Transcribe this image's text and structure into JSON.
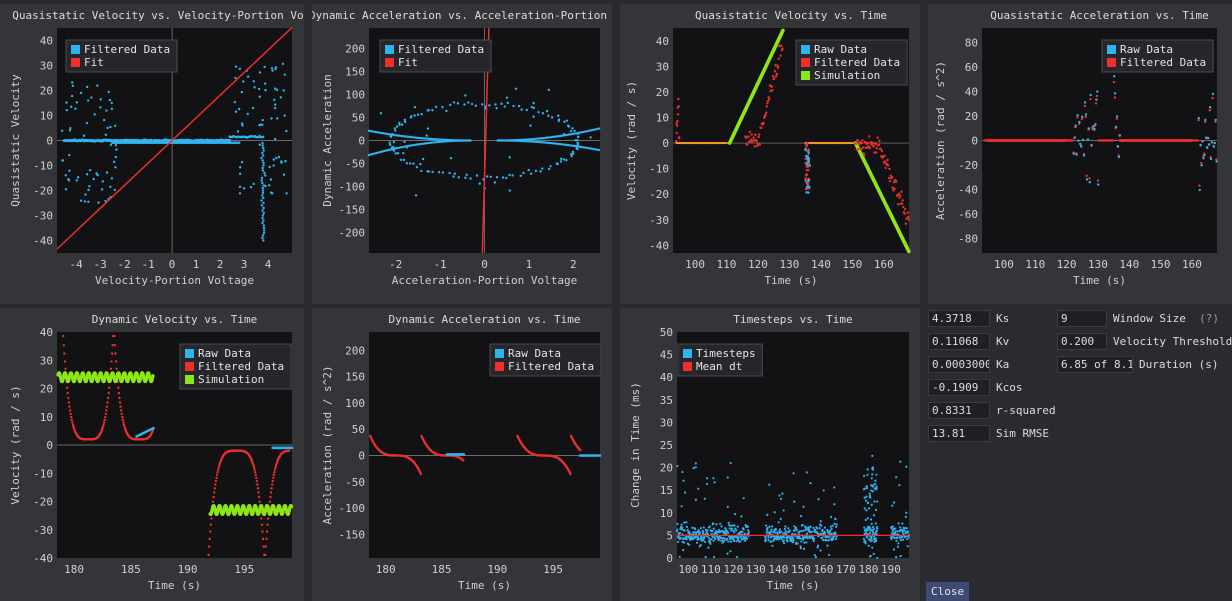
{
  "colors": {
    "blue": "#2fb4f0",
    "red": "#ee2f2f",
    "green": "#8ee61a",
    "yellow": "#e8c81c"
  },
  "charts": [
    {
      "id": "p1",
      "title": "Quasistatic Velocity vs. Velocity-Portion Voltage",
      "xlabel": "Velocity-Portion Voltage",
      "ylabel": "Quasistatic Velocity",
      "xlim": [
        -4.8,
        5.0
      ],
      "ylim": [
        -45,
        45
      ],
      "xticks": [
        -4,
        -3,
        -2,
        -1,
        0,
        1,
        2,
        3,
        4
      ],
      "yticks": [
        -40,
        -30,
        -20,
        -10,
        0,
        10,
        20,
        30,
        40
      ],
      "legend": [
        {
          "name": "Filtered Data",
          "color": "blue"
        },
        {
          "name": "Fit",
          "color": "red"
        }
      ],
      "chart_data": {
        "type": "scatter",
        "fit_slope": 9.04,
        "series": [
          "Filtered Data",
          "Fit"
        ]
      }
    },
    {
      "id": "p2",
      "title": "Dynamic Acceleration vs. Acceleration-Portion Voltage",
      "xlabel": "Acceleration-Portion Voltage",
      "ylabel": "Dynamic Acceleration",
      "xlim": [
        -2.6,
        2.6
      ],
      "ylim": [
        -245,
        245
      ],
      "xticks": [
        -2,
        -1,
        0,
        1,
        2
      ],
      "yticks": [
        -200,
        -150,
        -100,
        -50,
        0,
        50,
        100,
        150,
        200
      ],
      "legend": [
        {
          "name": "Filtered Data",
          "color": "blue"
        },
        {
          "name": "Fit",
          "color": "red"
        }
      ],
      "chart_data": {
        "type": "scatter",
        "series": [
          "Filtered Data",
          "Fit"
        ]
      }
    },
    {
      "id": "p3",
      "title": "Quasistatic Velocity vs. Time",
      "xlabel": "Time (s)",
      "ylabel": "Velocity (rad / s)",
      "xlim": [
        93,
        168
      ],
      "ylim": [
        -43,
        45
      ],
      "xticks": [
        100,
        110,
        120,
        130,
        140,
        150,
        160
      ],
      "yticks": [
        -40,
        -30,
        -20,
        -10,
        0,
        10,
        20,
        30,
        40
      ],
      "legend": [
        {
          "name": "Raw Data",
          "color": "blue"
        },
        {
          "name": "Filtered Data",
          "color": "red"
        },
        {
          "name": "Simulation",
          "color": "green"
        }
      ],
      "chart_data": {
        "type": "scatter",
        "series": [
          "Raw Data",
          "Filtered Data",
          "Simulation"
        ]
      }
    },
    {
      "id": "p4",
      "title": "Quasistatic Acceleration vs. Time",
      "xlabel": "Time (s)",
      "ylabel": "Acceleration (rad / s^2)",
      "xlim": [
        93,
        168
      ],
      "ylim": [
        -92,
        92
      ],
      "xticks": [
        100,
        110,
        120,
        130,
        140,
        150,
        160
      ],
      "yticks": [
        -80,
        -60,
        -40,
        -20,
        0,
        20,
        40,
        60,
        80
      ],
      "legend": [
        {
          "name": "Raw Data",
          "color": "blue"
        },
        {
          "name": "Filtered Data",
          "color": "red"
        }
      ],
      "chart_data": {
        "type": "scatter",
        "series": [
          "Raw Data",
          "Filtered Data"
        ]
      }
    },
    {
      "id": "p5",
      "title": "Dynamic Velocity vs. Time",
      "xlabel": "Time (s)",
      "ylabel": "Velocity (rad / s)",
      "xlim": [
        178.5,
        199.2
      ],
      "ylim": [
        -40,
        40
      ],
      "xticks": [
        180,
        185,
        190,
        195
      ],
      "yticks": [
        -40,
        -30,
        -20,
        -10,
        0,
        10,
        20,
        30,
        40
      ],
      "legend": [
        {
          "name": "Raw Data",
          "color": "blue"
        },
        {
          "name": "Filtered Data",
          "color": "red"
        },
        {
          "name": "Simulation",
          "color": "green"
        }
      ],
      "chart_data": {
        "type": "scatter",
        "series": [
          "Raw Data",
          "Filtered Data",
          "Simulation"
        ]
      }
    },
    {
      "id": "p6",
      "title": "Dynamic Acceleration vs. Time",
      "xlabel": "Time (s)",
      "ylabel": "Acceleration (rad / s^2)",
      "xlim": [
        178.5,
        199.2
      ],
      "ylim": [
        -195,
        235
      ],
      "xticks": [
        180,
        185,
        190,
        195
      ],
      "yticks": [
        -150,
        -100,
        -50,
        0,
        50,
        100,
        150,
        200
      ],
      "legend": [
        {
          "name": "Raw Data",
          "color": "blue"
        },
        {
          "name": "Filtered Data",
          "color": "red"
        }
      ],
      "chart_data": {
        "type": "scatter",
        "series": [
          "Raw Data",
          "Filtered Data"
        ]
      }
    },
    {
      "id": "p7",
      "title": "Timesteps vs. Time",
      "xlabel": "Time (s)",
      "ylabel": "Change in Time (ms)",
      "xlim": [
        95,
        198
      ],
      "ylim": [
        0,
        50
      ],
      "xticks": [
        100,
        110,
        120,
        130,
        140,
        150,
        160,
        170,
        180,
        190
      ],
      "yticks": [
        0,
        5,
        10,
        15,
        20,
        25,
        30,
        35,
        40,
        45,
        50
      ],
      "legend": [
        {
          "name": "Timesteps",
          "color": "blue"
        },
        {
          "name": "Mean dt",
          "color": "red"
        }
      ],
      "chart_data": {
        "type": "scatter",
        "mean_dt": 5.0,
        "series": [
          "Timesteps",
          "Mean dt"
        ]
      }
    }
  ],
  "stats": {
    "ks": {
      "value": "4.3718",
      "label": "Ks"
    },
    "kv": {
      "value": "0.11068",
      "label": "Kv"
    },
    "ka": {
      "value": "0.00030002",
      "label": "Ka"
    },
    "kcos": {
      "value": "-0.1909",
      "label": "Kcos"
    },
    "r2": {
      "value": "0.8331",
      "label": "r-squared"
    },
    "rmse": {
      "value": "13.81",
      "label": "Sim RMSE"
    },
    "window": {
      "value": "9",
      "label": "Window Size",
      "help": "(?)"
    },
    "vthresh": {
      "value": "0.200",
      "label": "Velocity Threshold"
    },
    "duration": {
      "value": "6.85 of 8.11",
      "label": "Duration (s)"
    }
  },
  "close_label": "Close"
}
